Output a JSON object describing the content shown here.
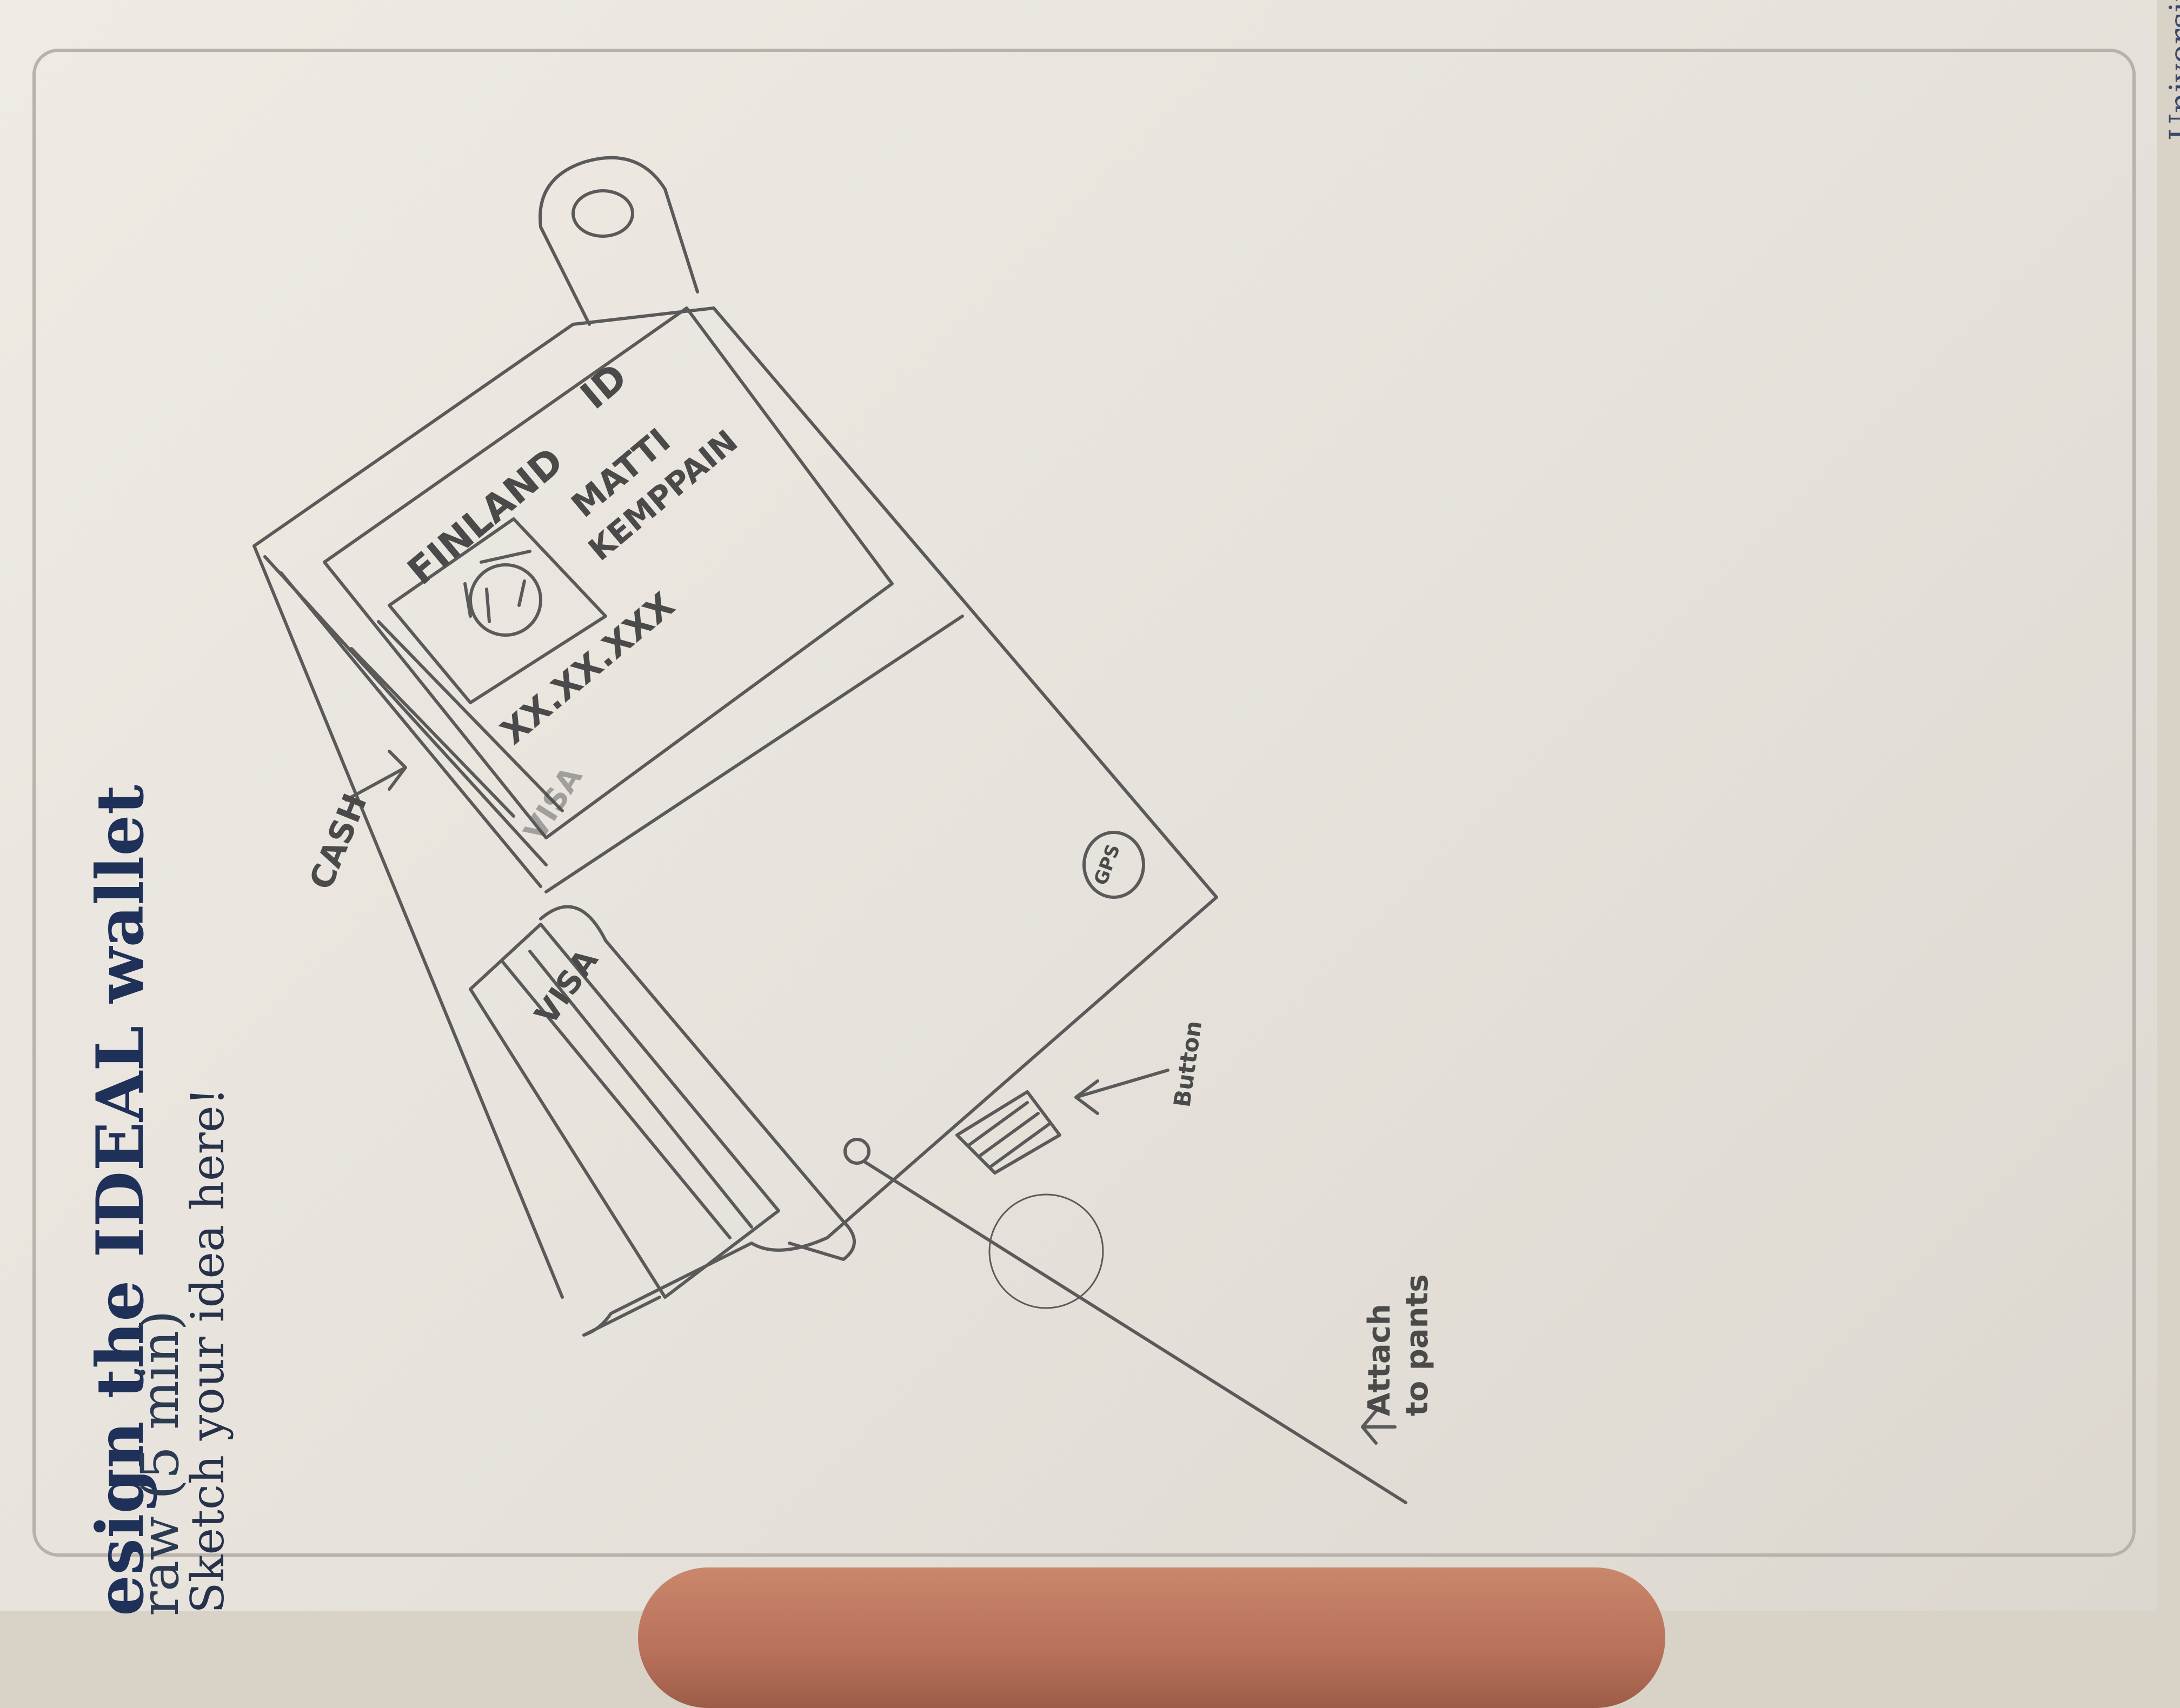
{
  "printed": {
    "heading": "esign the IDEAL wallet",
    "subheading": "raw (5 min)",
    "prompt": "Sketch your idea here!",
    "footer": "University of Oulu"
  },
  "sketch_labels": {
    "country": "FINLAND",
    "id": "ID",
    "first_name": "MATTI",
    "last_name": "KEMPPAIN",
    "number": "XX.XX.XXX",
    "card_top": "VISA",
    "card_bottom": "VISA",
    "cash": "CASH",
    "gps": "GPS",
    "button": "Button",
    "attach_line1": "Attach",
    "attach_line2": "to pants"
  },
  "colors": {
    "paper": "#ebe7e0",
    "pencil": "#5a5a5a",
    "print_blue": "#1f3159"
  }
}
